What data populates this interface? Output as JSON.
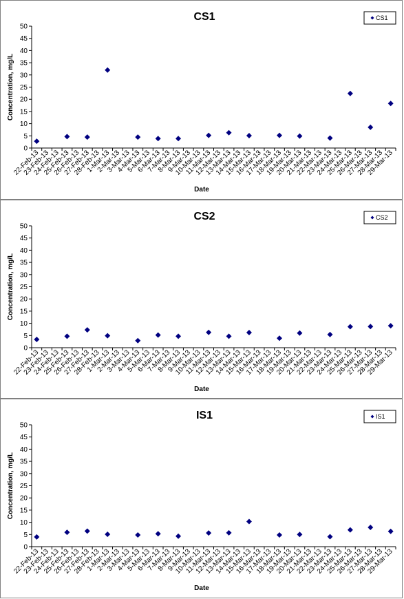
{
  "marker_color": "#000080",
  "x_dates": [
    "22-Feb-13",
    "23-Feb-13",
    "24-Feb-13",
    "25-Feb-13",
    "26-Feb-13",
    "27-Feb-13",
    "28-Feb-13",
    "1-Mar-13",
    "2-Mar-13",
    "3-Mar-13",
    "4-Mar-13",
    "5-Mar-13",
    "6-Mar-13",
    "7-Mar-13",
    "8-Mar-13",
    "9-Mar-13",
    "10-Mar-13",
    "11-Mar-13",
    "12-Mar-13",
    "13-Mar-13",
    "14-Mar-13",
    "15-Mar-13",
    "16-Mar-13",
    "17-Mar-13",
    "18-Mar-13",
    "19-Mar-13",
    "20-Mar-13",
    "21-Mar-13",
    "22-Mar-13",
    "23-Mar-13",
    "24-Mar-13",
    "25-Mar-13",
    "26-Mar-13",
    "27-Mar-13",
    "28-Mar-13",
    "29-Mar-13"
  ],
  "chart_data": [
    {
      "type": "scatter",
      "title": "CS1",
      "xlabel": "Date",
      "ylabel": "Concentration, mg/L",
      "ylim": [
        0,
        50
      ],
      "yticks": [
        "0",
        "5",
        "10",
        "15",
        "20",
        "25",
        "30",
        "35",
        "40",
        "45",
        "50"
      ],
      "legend_position": "top-right",
      "grid": false,
      "series": [
        {
          "name": "CS1",
          "x": [
            "22-Feb-13",
            "25-Feb-13",
            "27-Feb-13",
            "1-Mar-13",
            "4-Mar-13",
            "6-Mar-13",
            "8-Mar-13",
            "11-Mar-13",
            "13-Mar-13",
            "15-Mar-13",
            "18-Mar-13",
            "20-Mar-13",
            "23-Mar-13",
            "25-Mar-13",
            "27-Mar-13",
            "29-Mar-13"
          ],
          "y": [
            2.8,
            4.7,
            4.5,
            32.0,
            4.5,
            3.9,
            3.9,
            5.2,
            6.3,
            5.1,
            5.2,
            4.9,
            4.1,
            22.4,
            8.5,
            18.3
          ]
        }
      ]
    },
    {
      "type": "scatter",
      "title": "CS2",
      "xlabel": "Date",
      "ylabel": "Concentration, mg/L",
      "ylim": [
        0,
        50
      ],
      "yticks": [
        "0",
        "5",
        "10",
        "15",
        "20",
        "25",
        "30",
        "35",
        "40",
        "45",
        "50"
      ],
      "legend_position": "top-right",
      "grid": false,
      "series": [
        {
          "name": "CS2",
          "x": [
            "22-Feb-13",
            "25-Feb-13",
            "27-Feb-13",
            "1-Mar-13",
            "4-Mar-13",
            "6-Mar-13",
            "8-Mar-13",
            "11-Mar-13",
            "13-Mar-13",
            "15-Mar-13",
            "18-Mar-13",
            "20-Mar-13",
            "23-Mar-13",
            "25-Mar-13",
            "27-Mar-13",
            "29-Mar-13"
          ],
          "y": [
            3.4,
            4.7,
            7.3,
            4.9,
            2.9,
            5.2,
            4.7,
            6.3,
            4.7,
            6.2,
            3.9,
            6.0,
            5.4,
            8.6,
            8.7,
            9.0
          ]
        }
      ]
    },
    {
      "type": "scatter",
      "title": "IS1",
      "xlabel": "Date",
      "ylabel": "Concentration, mg/L",
      "ylim": [
        0,
        50
      ],
      "yticks": [
        "0",
        "5",
        "10",
        "15",
        "20",
        "25",
        "30",
        "35",
        "40",
        "45",
        "50"
      ],
      "legend_position": "top-right",
      "grid": false,
      "series": [
        {
          "name": "IS1",
          "x": [
            "22-Feb-13",
            "25-Feb-13",
            "27-Feb-13",
            "1-Mar-13",
            "4-Mar-13",
            "6-Mar-13",
            "8-Mar-13",
            "11-Mar-13",
            "13-Mar-13",
            "15-Mar-13",
            "18-Mar-13",
            "20-Mar-13",
            "23-Mar-13",
            "25-Mar-13",
            "27-Mar-13",
            "29-Mar-13"
          ],
          "y": [
            4.0,
            5.9,
            6.4,
            5.1,
            4.8,
            5.3,
            4.3,
            5.6,
            5.7,
            10.3,
            4.8,
            5.0,
            4.1,
            6.9,
            7.9,
            6.3
          ]
        }
      ]
    }
  ]
}
